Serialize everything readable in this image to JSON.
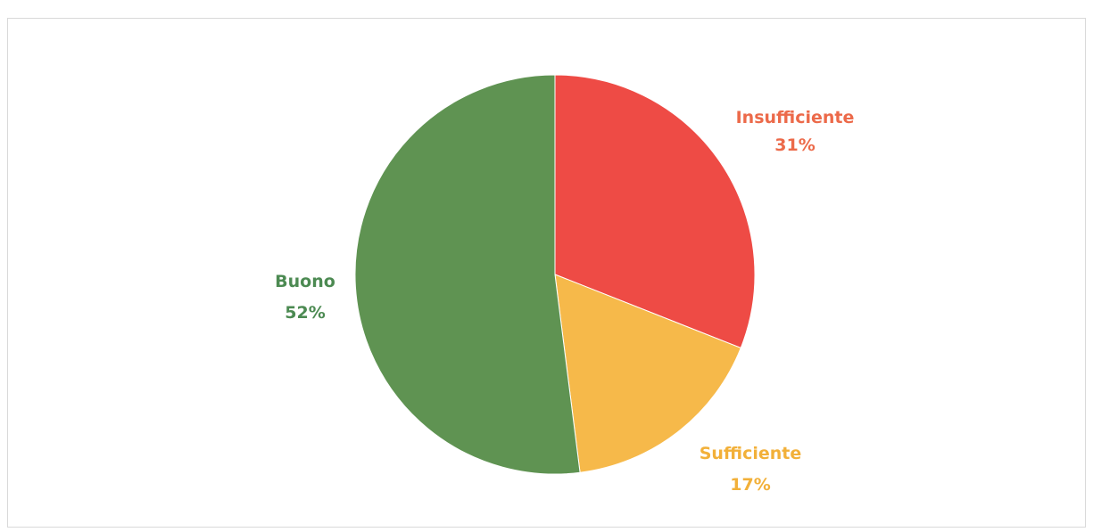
{
  "chart_data": {
    "type": "pie",
    "title": "",
    "slices": [
      {
        "label": "Insufficiente",
        "value": 31,
        "percent_label": "31%",
        "color": "#ee4b45"
      },
      {
        "label": "Sufficiente",
        "value": 17,
        "percent_label": "17%",
        "color": "#f6b94a"
      },
      {
        "label": "Buono",
        "value": 52,
        "percent_label": "52%",
        "color": "#5f9352"
      }
    ],
    "label_colors": {
      "Insufficiente": "#ec6a4a",
      "Sufficiente": "#f2b039",
      "Buono": "#4c8a52"
    },
    "start_angle": "12 o'clock",
    "direction": "clockwise",
    "legend": "none"
  }
}
